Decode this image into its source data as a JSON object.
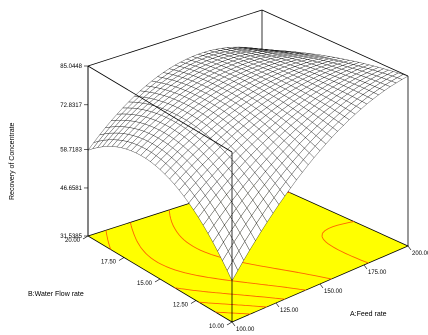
{
  "chart_data": {
    "type": "surface",
    "title": "",
    "x_axis": {
      "label": "A:Feed rate",
      "ticks": [
        "100.00",
        "125.00",
        "150.00",
        "175.00",
        "200.00"
      ],
      "range": [
        100,
        200
      ]
    },
    "y_axis": {
      "label": "B:Water Flow rate",
      "ticks": [
        "10.00",
        "12.50",
        "15.00",
        "17.50",
        "20.00"
      ],
      "range": [
        10,
        20
      ]
    },
    "z_axis": {
      "label": "Recovery of Concentrate",
      "ticks": [
        "31.5385",
        "46.6581",
        "58.7183",
        "72.8317",
        "85.0448"
      ],
      "range": [
        31.5385,
        85.0448
      ]
    },
    "surface": {
      "x": [
        100,
        150,
        200
      ],
      "y": [
        10,
        15,
        20
      ],
      "z": [
        [
          44.5,
          73.5,
          85.0
        ],
        [
          66.0,
          79.0,
          80.5
        ],
        [
          58.5,
          76.5,
          72.5
        ]
      ]
    },
    "floor_color": "#ffff00",
    "contour_color": "#ff6600",
    "mesh_color": "#000000"
  }
}
